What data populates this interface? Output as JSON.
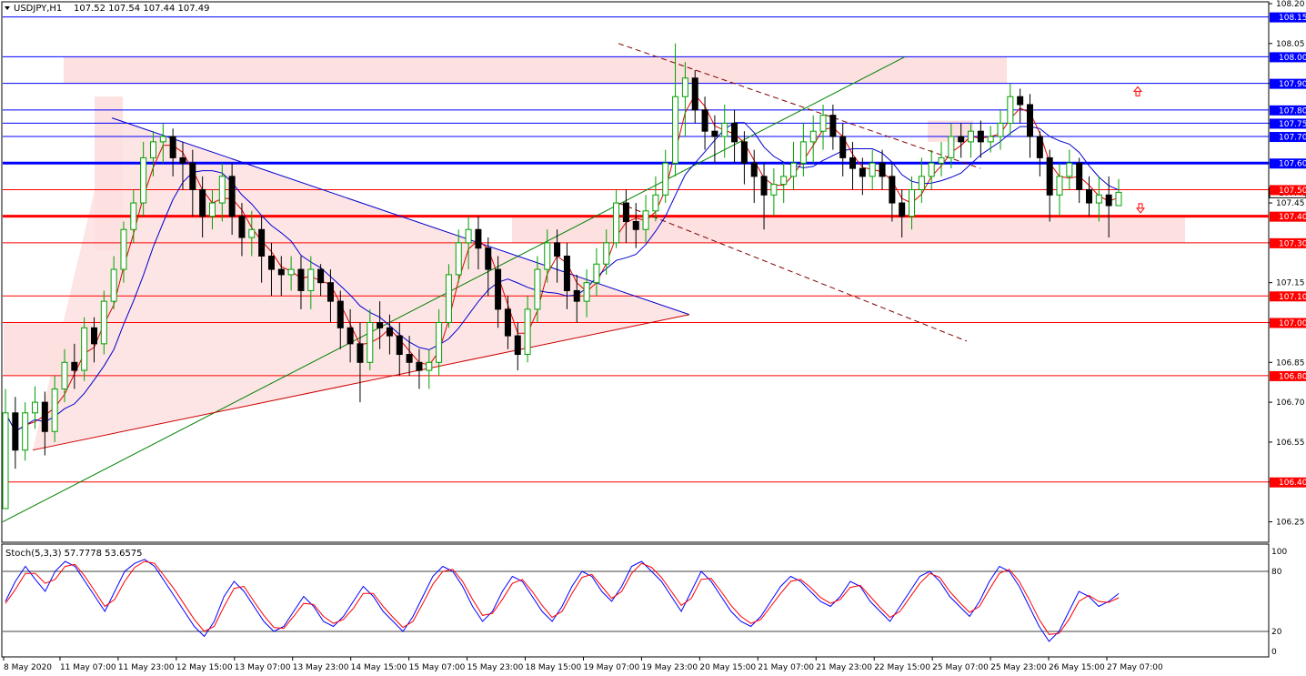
{
  "header": {
    "symbol_timeframe": "USDJPY,H1",
    "ohlc": "107.52 107.54 107.44 107.49"
  },
  "stoch_header": "Stoch(5,3,3) 57.7778 53.6575",
  "colors": {
    "bull": "#00a000",
    "bear": "#000000",
    "ma_fast": "#e00000",
    "ma_slow": "#0000d0",
    "level_blue": "#0000ff",
    "level_red": "#ff0000",
    "zone": "#fde0e0",
    "trend_green": "#008000",
    "trend_blue": "#0000cd",
    "trend_red": "#cc0000",
    "trend_dashed": "#800000"
  },
  "chart_data": {
    "type": "candlestick",
    "symbol": "USDJPY",
    "timeframe": "H1",
    "ylim": [
      106.18,
      108.2
    ],
    "price_ticks": [
      108.2,
      108.05,
      107.9,
      107.75,
      107.6,
      107.45,
      107.3,
      107.15,
      107.0,
      106.85,
      106.7,
      106.55,
      106.4,
      106.25
    ],
    "x_labels": [
      "8 May 2020",
      "11 May 07:00",
      "11 May 23:00",
      "12 May 15:00",
      "13 May 07:00",
      "13 May 23:00",
      "14 May 15:00",
      "15 May 07:00",
      "15 May 23:00",
      "18 May 15:00",
      "19 May 07:00",
      "19 May 23:00",
      "20 May 15:00",
      "21 May 07:00",
      "21 May 23:00",
      "22 May 15:00",
      "25 May 07:00",
      "25 May 23:00",
      "26 May 15:00",
      "27 May 07:00"
    ],
    "horizontal_levels": [
      {
        "price": 108.15,
        "label": "108.15",
        "color": "blue",
        "width": "thin"
      },
      {
        "price": 108.0,
        "label": "108.00",
        "color": "blue",
        "width": "thin"
      },
      {
        "price": 107.9,
        "label": "107.90",
        "color": "blue",
        "width": "thin"
      },
      {
        "price": 107.8,
        "label": "107.80",
        "color": "blue",
        "width": "thin"
      },
      {
        "price": 107.75,
        "label": "107.75",
        "color": "blue",
        "width": "thin"
      },
      {
        "price": 107.7,
        "label": "107.70",
        "color": "blue",
        "width": "thin"
      },
      {
        "price": 107.6,
        "label": "107.60",
        "color": "blue",
        "width": "thick"
      },
      {
        "price": 107.5,
        "label": "107.50",
        "color": "red",
        "width": "thin"
      },
      {
        "price": 107.4,
        "label": "107.40",
        "color": "red",
        "width": "thick"
      },
      {
        "price": 107.3,
        "label": "107.30",
        "color": "red",
        "width": "thin"
      },
      {
        "price": 107.1,
        "label": "107.10",
        "color": "red",
        "width": "thin"
      },
      {
        "price": 107.0,
        "label": "107.00",
        "color": "red",
        "width": "thin"
      },
      {
        "price": 106.8,
        "label": "106.80",
        "color": "red",
        "width": "thin"
      },
      {
        "price": 106.4,
        "label": "106.40",
        "color": "red",
        "width": "thin"
      }
    ],
    "current_price": "107.49",
    "candles_hourly": [
      [
        106.3,
        106.66,
        106.55,
        106.75
      ],
      [
        106.66,
        106.52,
        106.45,
        106.72
      ],
      [
        106.52,
        106.66,
        106.48,
        106.7
      ],
      [
        106.66,
        106.7,
        106.6,
        106.76
      ],
      [
        106.7,
        106.59,
        106.5,
        106.74
      ],
      [
        106.59,
        106.75,
        106.55,
        106.8
      ],
      [
        106.75,
        106.85,
        106.7,
        106.9
      ],
      [
        106.85,
        106.82,
        106.75,
        106.92
      ],
      [
        106.82,
        106.98,
        106.78,
        107.02
      ],
      [
        106.98,
        106.92,
        106.85,
        107.02
      ],
      [
        106.92,
        107.08,
        106.88,
        107.12
      ],
      [
        107.08,
        107.2,
        107.05,
        107.25
      ],
      [
        107.2,
        107.35,
        107.15,
        107.38
      ],
      [
        107.35,
        107.45,
        107.3,
        107.5
      ],
      [
        107.45,
        107.62,
        107.4,
        107.68
      ],
      [
        107.62,
        107.68,
        107.55,
        107.72
      ],
      [
        107.68,
        107.7,
        107.6,
        107.75
      ],
      [
        107.7,
        107.62,
        107.55,
        107.73
      ],
      [
        107.62,
        107.6,
        107.5,
        107.68
      ],
      [
        107.6,
        107.5,
        107.4,
        107.65
      ],
      [
        107.5,
        107.4,
        107.32,
        107.55
      ],
      [
        107.4,
        107.45,
        107.35,
        107.5
      ],
      [
        107.45,
        107.55,
        107.38,
        107.6
      ],
      [
        107.55,
        107.4,
        107.33,
        107.6
      ],
      [
        107.4,
        107.32,
        107.25,
        107.45
      ],
      [
        107.32,
        107.35,
        107.25,
        107.42
      ],
      [
        107.35,
        107.25,
        107.15,
        107.4
      ],
      [
        107.25,
        107.2,
        107.1,
        107.3
      ],
      [
        107.2,
        107.18,
        107.1,
        107.25
      ],
      [
        107.18,
        107.2,
        107.12,
        107.25
      ],
      [
        107.2,
        107.12,
        107.05,
        107.25
      ],
      [
        107.12,
        107.2,
        107.05,
        107.25
      ],
      [
        107.2,
        107.15,
        107.1,
        107.22
      ],
      [
        107.15,
        107.08,
        107.0,
        107.2
      ],
      [
        107.08,
        106.98,
        106.9,
        107.12
      ],
      [
        106.98,
        106.92,
        106.85,
        107.05
      ],
      [
        106.92,
        106.85,
        106.7,
        107.0
      ],
      [
        106.85,
        107.0,
        106.82,
        107.05
      ],
      [
        107.0,
        106.98,
        106.9,
        107.08
      ],
      [
        106.98,
        106.95,
        106.88,
        107.03
      ],
      [
        106.95,
        106.88,
        106.8,
        107.0
      ],
      [
        106.88,
        106.85,
        106.8,
        106.95
      ],
      [
        106.85,
        106.82,
        106.75,
        106.9
      ],
      [
        106.82,
        106.85,
        106.75,
        106.9
      ],
      [
        106.85,
        107.0,
        106.8,
        107.05
      ],
      [
        107.0,
        107.18,
        106.98,
        107.22
      ],
      [
        107.18,
        107.3,
        107.15,
        107.35
      ],
      [
        107.3,
        107.35,
        107.2,
        107.4
      ],
      [
        107.35,
        107.28,
        107.2,
        107.4
      ],
      [
        107.28,
        107.2,
        107.1,
        107.32
      ],
      [
        107.2,
        107.05,
        106.98,
        107.25
      ],
      [
        107.05,
        106.95,
        106.9,
        107.1
      ],
      [
        106.95,
        106.88,
        106.82,
        107.0
      ],
      [
        106.88,
        107.05,
        106.85,
        107.1
      ],
      [
        107.05,
        107.2,
        107.0,
        107.25
      ],
      [
        107.2,
        107.3,
        107.15,
        107.35
      ],
      [
        107.3,
        107.25,
        107.15,
        107.35
      ],
      [
        107.25,
        107.12,
        107.05,
        107.3
      ],
      [
        107.12,
        107.08,
        107.0,
        107.18
      ],
      [
        107.08,
        107.15,
        107.02,
        107.2
      ],
      [
        107.15,
        107.22,
        107.1,
        107.28
      ],
      [
        107.22,
        107.3,
        107.18,
        107.35
      ],
      [
        107.3,
        107.45,
        107.28,
        107.5
      ],
      [
        107.45,
        107.38,
        107.3,
        107.5
      ],
      [
        107.38,
        107.35,
        107.28,
        107.45
      ],
      [
        107.35,
        107.42,
        107.3,
        107.48
      ],
      [
        107.42,
        107.48,
        107.38,
        107.55
      ],
      [
        107.48,
        107.6,
        107.45,
        107.65
      ],
      [
        107.6,
        107.85,
        107.55,
        108.05
      ],
      [
        107.85,
        107.92,
        107.7,
        107.98
      ],
      [
        107.92,
        107.8,
        107.75,
        107.95
      ],
      [
        107.8,
        107.72,
        107.65,
        107.85
      ],
      [
        107.72,
        107.7,
        107.6,
        107.78
      ],
      [
        107.7,
        107.75,
        107.62,
        107.82
      ],
      [
        107.75,
        107.68,
        107.6,
        107.8
      ],
      [
        107.68,
        107.6,
        107.52,
        107.72
      ],
      [
        107.6,
        107.55,
        107.45,
        107.65
      ],
      [
        107.55,
        107.48,
        107.35,
        107.6
      ],
      [
        107.48,
        107.52,
        107.4,
        107.58
      ],
      [
        107.52,
        107.55,
        107.45,
        107.6
      ],
      [
        107.55,
        107.6,
        107.5,
        107.68
      ],
      [
        107.6,
        107.68,
        107.55,
        107.75
      ],
      [
        107.68,
        107.72,
        107.6,
        107.78
      ],
      [
        107.72,
        107.78,
        107.65,
        107.82
      ],
      [
        107.78,
        107.7,
        107.65,
        107.82
      ],
      [
        107.7,
        107.62,
        107.55,
        107.75
      ],
      [
        107.62,
        107.58,
        107.5,
        107.68
      ],
      [
        107.58,
        107.55,
        107.48,
        107.62
      ],
      [
        107.55,
        107.6,
        107.5,
        107.65
      ],
      [
        107.6,
        107.55,
        107.5,
        107.65
      ],
      [
        107.55,
        107.45,
        107.38,
        107.6
      ],
      [
        107.45,
        107.4,
        107.32,
        107.5
      ],
      [
        107.4,
        107.5,
        107.35,
        107.55
      ],
      [
        107.5,
        107.55,
        107.45,
        107.62
      ],
      [
        107.55,
        107.6,
        107.5,
        107.65
      ],
      [
        107.6,
        107.62,
        107.55,
        107.68
      ],
      [
        107.62,
        107.7,
        107.58,
        107.75
      ],
      [
        107.7,
        107.68,
        107.62,
        107.75
      ],
      [
        107.68,
        107.72,
        107.62,
        107.75
      ],
      [
        107.72,
        107.68,
        107.62,
        107.76
      ],
      [
        107.68,
        107.7,
        107.64,
        107.74
      ],
      [
        107.7,
        107.75,
        107.65,
        107.8
      ],
      [
        107.75,
        107.85,
        107.7,
        107.9
      ],
      [
        107.85,
        107.82,
        107.75,
        107.88
      ],
      [
        107.82,
        107.7,
        107.62,
        107.86
      ],
      [
        107.7,
        107.62,
        107.55,
        107.72
      ],
      [
        107.62,
        107.48,
        107.38,
        107.65
      ],
      [
        107.48,
        107.55,
        107.4,
        107.6
      ],
      [
        107.55,
        107.6,
        107.5,
        107.65
      ],
      [
        107.6,
        107.5,
        107.45,
        107.62
      ],
      [
        107.5,
        107.45,
        107.4,
        107.55
      ],
      [
        107.45,
        107.48,
        107.38,
        107.55
      ],
      [
        107.48,
        107.44,
        107.32,
        107.55
      ],
      [
        107.44,
        107.49,
        107.44,
        107.54
      ]
    ]
  },
  "stoch_chart_data": {
    "type": "line",
    "ylim": [
      0,
      100
    ],
    "levels": [
      20,
      80
    ],
    "tick_labels": [
      "100",
      "80",
      "20",
      "0"
    ],
    "main": [
      50,
      70,
      85,
      72,
      60,
      80,
      90,
      85,
      70,
      55,
      40,
      60,
      80,
      88,
      92,
      85,
      70,
      55,
      40,
      25,
      15,
      30,
      55,
      70,
      60,
      45,
      30,
      20,
      25,
      40,
      55,
      45,
      30,
      25,
      35,
      50,
      65,
      55,
      40,
      30,
      20,
      35,
      55,
      75,
      85,
      80,
      65,
      45,
      30,
      40,
      60,
      75,
      70,
      55,
      40,
      30,
      45,
      65,
      80,
      75,
      60,
      50,
      65,
      85,
      90,
      80,
      70,
      55,
      40,
      60,
      80,
      70,
      55,
      40,
      30,
      25,
      35,
      50,
      65,
      75,
      70,
      60,
      50,
      45,
      55,
      70,
      65,
      50,
      40,
      30,
      45,
      60,
      75,
      80,
      70,
      55,
      45,
      35,
      50,
      70,
      85,
      80,
      65,
      45,
      25,
      10,
      20,
      40,
      60,
      55,
      45,
      50,
      57.78
    ],
    "signal": [
      48,
      62,
      78,
      78,
      68,
      72,
      85,
      87,
      75,
      60,
      45,
      52,
      70,
      84,
      90,
      88,
      75,
      62,
      47,
      32,
      20,
      25,
      45,
      63,
      65,
      50,
      36,
      24,
      23,
      35,
      48,
      47,
      35,
      28,
      32,
      43,
      58,
      58,
      45,
      34,
      24,
      30,
      48,
      67,
      80,
      82,
      70,
      52,
      36,
      38,
      52,
      68,
      72,
      60,
      46,
      34,
      40,
      58,
      74,
      77,
      65,
      53,
      60,
      78,
      88,
      84,
      74,
      60,
      46,
      53,
      72,
      73,
      60,
      46,
      35,
      28,
      32,
      45,
      58,
      70,
      72,
      64,
      54,
      48,
      52,
      64,
      66,
      55,
      44,
      34,
      40,
      54,
      68,
      78,
      74,
      60,
      49,
      39,
      45,
      62,
      78,
      82,
      70,
      52,
      32,
      17,
      18,
      32,
      50,
      56,
      50,
      49,
      53.66
    ]
  }
}
